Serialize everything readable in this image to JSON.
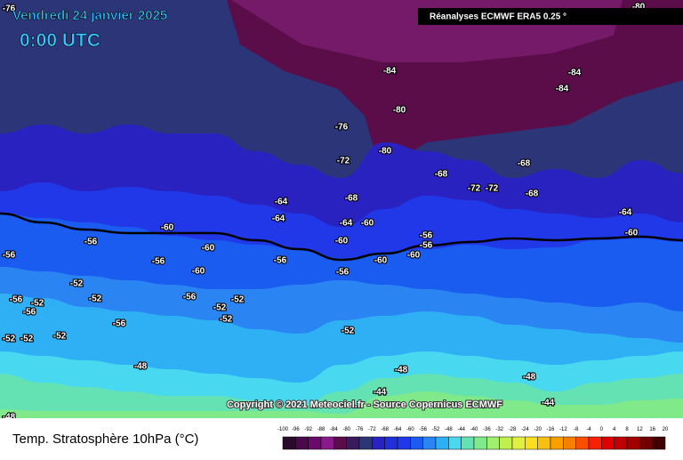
{
  "header": {
    "date": "Vendredi 24 janvier 2025",
    "time": "0:00 UTC",
    "source": "Réanalyses ECMWF ERA5 0.25 °"
  },
  "copyright": "Copyright © 2021 Meteociel.fr - Source Copernicus ECMWF",
  "footer_title": "Temp. Stratosphère 10hPa (°C)",
  "legend": {
    "labels": [
      -100,
      -96,
      -92,
      -88,
      -84,
      -80,
      -76,
      -72,
      -68,
      -64,
      -60,
      -56,
      -52,
      -48,
      -44,
      -40,
      -36,
      -32,
      -28,
      -24,
      -20,
      -16,
      -12,
      -8,
      -4,
      0,
      4,
      8,
      12,
      16,
      20
    ]
  },
  "contour_labels": [
    -76,
    -80,
    -84,
    -84,
    -84,
    -80,
    -76,
    -80,
    -72,
    -68,
    -68,
    -72,
    -72,
    -68,
    -64,
    -68,
    -64,
    -64,
    -60,
    -64,
    -60,
    -56,
    -56,
    -60,
    -56,
    -60,
    -60,
    -56,
    -56,
    -56,
    -60,
    -60,
    -60,
    -56,
    -52,
    -52,
    -56,
    -56,
    -52,
    -56,
    -52,
    -52,
    -52,
    -56,
    -52,
    -52,
    -52,
    -52,
    -48,
    -48,
    -48,
    -44,
    -44,
    -48
  ]
}
